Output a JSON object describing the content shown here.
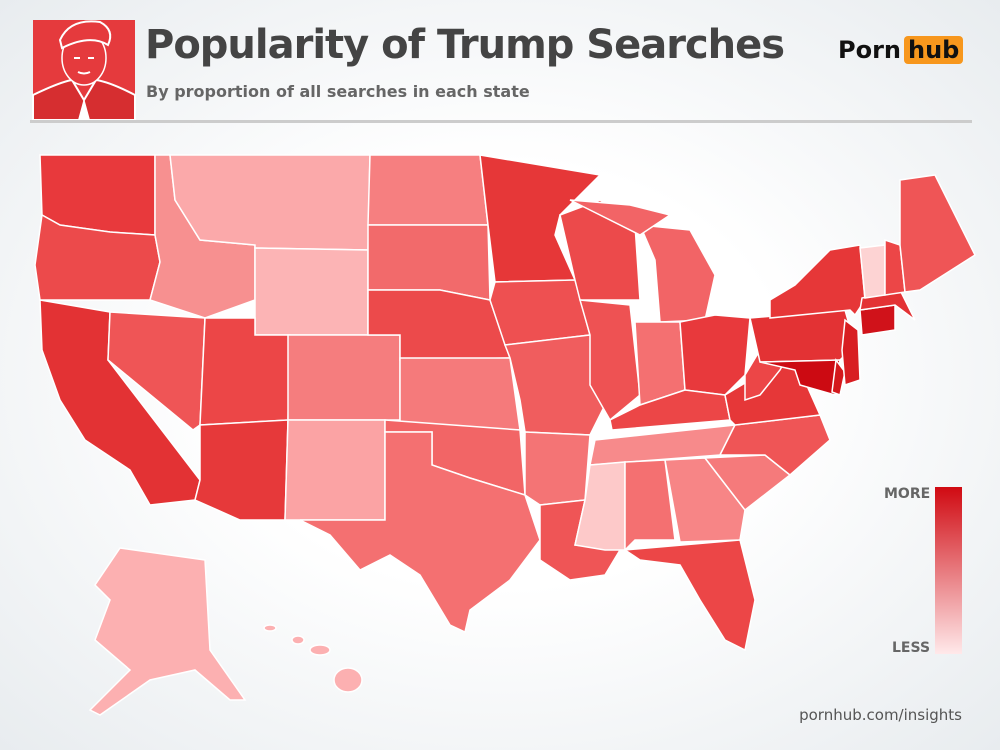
{
  "header": {
    "title": "Popularity of Trump Searches",
    "subtitle": "By proportion of all searches in each state"
  },
  "logo": {
    "left": "Porn",
    "right": "hub"
  },
  "legend": {
    "high": "MORE",
    "low": "LESS"
  },
  "footer": "pornhub.com/insights"
}
